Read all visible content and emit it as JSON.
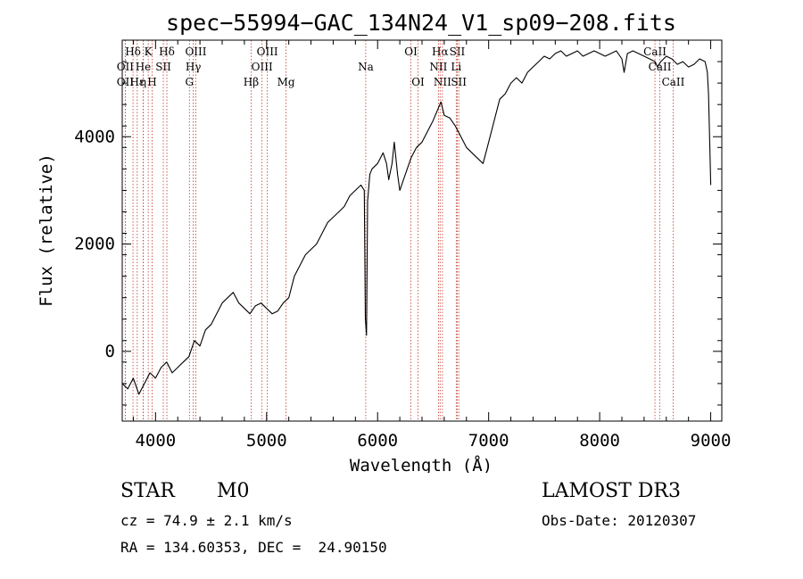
{
  "chart_data": {
    "type": "line",
    "title": "spec−55994−GAC_134N24_V1_sp09−208.fits",
    "xlabel": "Wavelength (Å)",
    "ylabel": "Flux (relative)",
    "xlim": [
      3700,
      9100
    ],
    "ylim": [
      -1300,
      5800
    ],
    "xticks": [
      4000,
      5000,
      6000,
      7000,
      8000,
      9000
    ],
    "xtick_labels": [
      "4000",
      "5000",
      "6000",
      "7000",
      "8000",
      "9000"
    ],
    "yticks": [
      0,
      2000,
      4000
    ],
    "ytick_labels": [
      "0",
      "2000",
      "4000"
    ],
    "series": [
      {
        "name": "flux",
        "color": "#000000",
        "x": [
          3700,
          3750,
          3800,
          3850,
          3900,
          3950,
          4000,
          4050,
          4100,
          4150,
          4200,
          4250,
          4300,
          4350,
          4400,
          4450,
          4500,
          4550,
          4600,
          4650,
          4700,
          4750,
          4800,
          4850,
          4900,
          4950,
          5000,
          5050,
          5100,
          5150,
          5200,
          5250,
          5300,
          5350,
          5400,
          5450,
          5500,
          5550,
          5600,
          5650,
          5700,
          5750,
          5800,
          5850,
          5880,
          5890,
          5900,
          5910,
          5930,
          5950,
          6000,
          6050,
          6080,
          6100,
          6130,
          6150,
          6180,
          6200,
          6250,
          6300,
          6350,
          6400,
          6450,
          6500,
          6550,
          6570,
          6600,
          6650,
          6700,
          6750,
          6800,
          6850,
          6900,
          6950,
          7000,
          7050,
          7100,
          7150,
          7200,
          7250,
          7300,
          7350,
          7400,
          7450,
          7500,
          7550,
          7600,
          7650,
          7700,
          7750,
          7800,
          7850,
          7900,
          7950,
          8000,
          8050,
          8100,
          8150,
          8200,
          8220,
          8250,
          8300,
          8350,
          8400,
          8450,
          8500,
          8520,
          8550,
          8600,
          8650,
          8700,
          8750,
          8800,
          8850,
          8900,
          8950,
          8960,
          8970,
          8980,
          8990,
          9000
        ],
        "y": [
          -600,
          -700,
          -500,
          -800,
          -600,
          -400,
          -500,
          -300,
          -200,
          -400,
          -300,
          -200,
          -100,
          200,
          100,
          400,
          500,
          700,
          900,
          1000,
          1100,
          900,
          800,
          700,
          850,
          900,
          800,
          700,
          750,
          900,
          1000,
          1400,
          1600,
          1800,
          1900,
          2000,
          2200,
          2400,
          2500,
          2600,
          2700,
          2900,
          3000,
          3100,
          3000,
          600,
          300,
          2800,
          3300,
          3400,
          3500,
          3700,
          3500,
          3200,
          3500,
          3900,
          3300,
          3000,
          3300,
          3600,
          3800,
          3900,
          4100,
          4300,
          4550,
          4650,
          4400,
          4350,
          4200,
          4000,
          3800,
          3700,
          3600,
          3500,
          3900,
          4300,
          4700,
          4800,
          5000,
          5100,
          5000,
          5200,
          5300,
          5400,
          5500,
          5450,
          5550,
          5600,
          5500,
          5550,
          5600,
          5500,
          5550,
          5600,
          5550,
          5500,
          5550,
          5600,
          5450,
          5200,
          5550,
          5600,
          5550,
          5500,
          5450,
          5400,
          5300,
          5400,
          5500,
          5450,
          5350,
          5400,
          5300,
          5350,
          5450,
          5400,
          5300,
          5200,
          4800,
          4000,
          3100
        ]
      }
    ],
    "lines": [
      {
        "name": "Hδ",
        "x": 3797,
        "row": 0
      },
      {
        "name": "OII",
        "x": 3727,
        "row": 1
      },
      {
        "name": "OII",
        "x": 3727,
        "row": 2
      },
      {
        "name": "Hε",
        "x": 3835,
        "row": 2
      },
      {
        "name": "He",
        "x": 3889,
        "row": 1
      },
      {
        "name": "η",
        "x": 3889,
        "row": 2
      },
      {
        "name": "K",
        "x": 3934,
        "row": 0
      },
      {
        "name": "H",
        "x": 3969,
        "row": 2
      },
      {
        "name": "SII",
        "x": 4070,
        "row": 1
      },
      {
        "name": "Hδ",
        "x": 4102,
        "row": 0
      },
      {
        "name": "OIII",
        "x": 4363,
        "row": 0
      },
      {
        "name": "Hγ",
        "x": 4340,
        "row": 1
      },
      {
        "name": "G",
        "x": 4305,
        "row": 2
      },
      {
        "name": "Hβ",
        "x": 4861,
        "row": 2
      },
      {
        "name": "OIII",
        "x": 4959,
        "row": 1
      },
      {
        "name": "OIII",
        "x": 5007,
        "row": 0
      },
      {
        "name": "Mg",
        "x": 5175,
        "row": 2
      },
      {
        "name": "Na",
        "x": 5893,
        "row": 1
      },
      {
        "name": "OI",
        "x": 6300,
        "row": 0
      },
      {
        "name": "OI",
        "x": 6364,
        "row": 2
      },
      {
        "name": "Hα",
        "x": 6563,
        "row": 0
      },
      {
        "name": "NII",
        "x": 6548,
        "row": 1
      },
      {
        "name": "NII",
        "x": 6584,
        "row": 2
      },
      {
        "name": "SII",
        "x": 6717,
        "row": 0
      },
      {
        "name": "Li",
        "x": 6708,
        "row": 1
      },
      {
        "name": "SII",
        "x": 6731,
        "row": 2
      },
      {
        "name": "CaII",
        "x": 8498,
        "row": 0
      },
      {
        "name": "CaII",
        "x": 8542,
        "row": 1
      },
      {
        "name": "CaII",
        "x": 8662,
        "row": 2
      }
    ],
    "line_color": "#c0392b"
  },
  "info": {
    "class": "STAR",
    "subclass": "M0",
    "cz": "cz = 74.9 ± 2.1 km/s",
    "coords": "RA = 134.60353, DEC =  24.90150",
    "survey": "LAMOST DR3",
    "obs_date": "Obs-Date: 20120307"
  }
}
